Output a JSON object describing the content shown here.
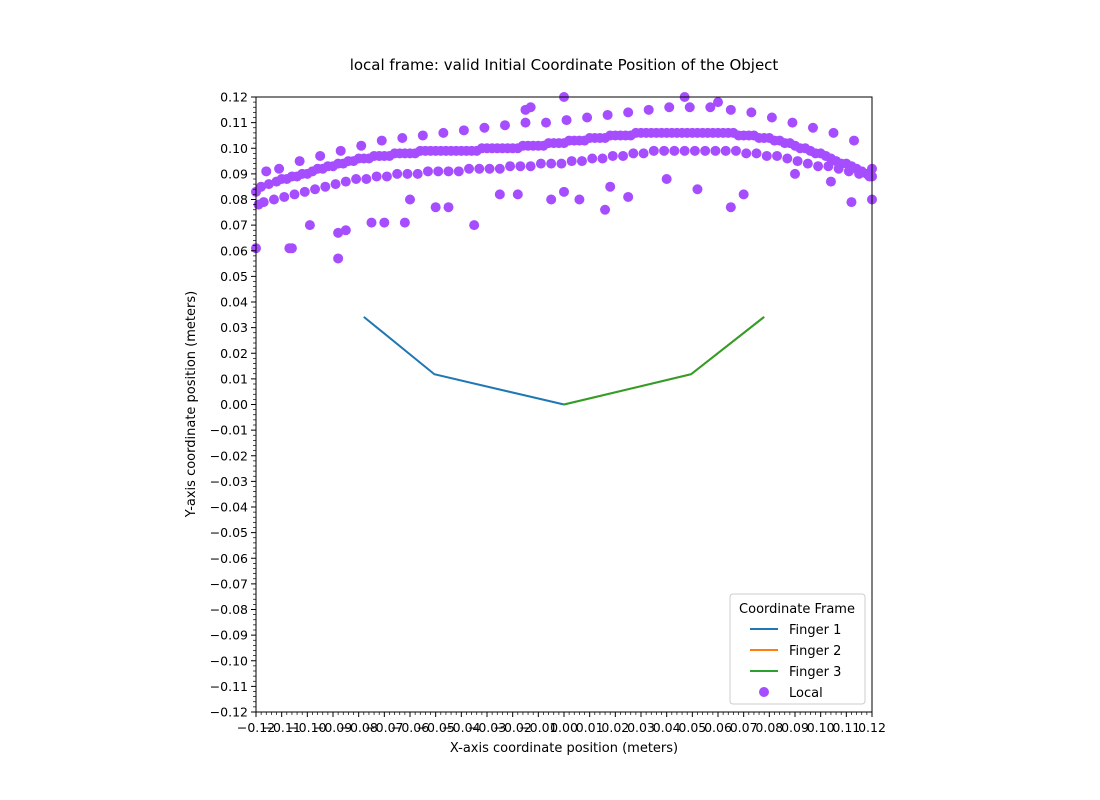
{
  "chart_data": {
    "type": "scatter",
    "title": "local frame: valid Initial Coordinate Position of the Object",
    "xlabel": "X-axis coordinate position (meters)",
    "ylabel": "Y-axis coordinate position (meters)",
    "xlim": [
      -0.12,
      0.12
    ],
    "ylim": [
      -0.12,
      0.12
    ],
    "xticks": [
      "−0.12",
      "−0.11",
      "−0.10",
      "−0.09",
      "−0.08",
      "−0.07",
      "−0.06",
      "−0.05",
      "−0.04",
      "−0.03",
      "−0.02",
      "−0.01",
      "0.00",
      "0.01",
      "0.02",
      "0.03",
      "0.04",
      "0.05",
      "0.06",
      "0.07",
      "0.08",
      "0.09",
      "0.10",
      "0.11",
      "0.12"
    ],
    "yticks": [
      "−0.12",
      "−0.11",
      "−0.10",
      "−0.09",
      "−0.08",
      "−0.07",
      "−0.06",
      "−0.05",
      "−0.04",
      "−0.03",
      "−0.02",
      "−0.01",
      "0.00",
      "0.01",
      "0.02",
      "0.03",
      "0.04",
      "0.05",
      "0.06",
      "0.07",
      "0.08",
      "0.09",
      "0.10",
      "0.11",
      "0.12"
    ],
    "grid": false,
    "legend": {
      "title": "Coordinate Frame",
      "placement": "bottom-right",
      "entries": [
        "Finger 1",
        "Finger 2",
        "Finger 3",
        "Local"
      ]
    },
    "series": [
      {
        "name": "Finger 1",
        "kind": "line",
        "color": "#1f77b4",
        "x": [
          0.0,
          -0.0505,
          -0.078
        ],
        "y": [
          0.0,
          0.0118,
          0.0342
        ]
      },
      {
        "name": "Finger 2",
        "kind": "line",
        "color": "#ff7f0e",
        "x": [
          0.0,
          0.0495,
          0.078
        ],
        "y": [
          0.0,
          0.0118,
          0.0342
        ]
      },
      {
        "name": "Finger 3",
        "kind": "line",
        "color": "#2ca02c",
        "x": [
          0.0,
          0.0495,
          0.078
        ],
        "y": [
          0.0,
          0.0118,
          0.0342
        ]
      },
      {
        "name": "Local",
        "kind": "scatter",
        "color": "#a64dff",
        "x": [
          -0.12,
          -0.118,
          -0.115,
          -0.112,
          -0.11,
          -0.108,
          -0.106,
          -0.104,
          -0.102,
          -0.1,
          -0.098,
          -0.096,
          -0.094,
          -0.092,
          -0.09,
          -0.088,
          -0.086,
          -0.084,
          -0.082,
          -0.08,
          -0.078,
          -0.076,
          -0.074,
          -0.072,
          -0.07,
          -0.068,
          -0.066,
          -0.064,
          -0.062,
          -0.06,
          -0.058,
          -0.056,
          -0.054,
          -0.052,
          -0.05,
          -0.048,
          -0.046,
          -0.044,
          -0.042,
          -0.04,
          -0.038,
          -0.036,
          -0.034,
          -0.032,
          -0.03,
          -0.028,
          -0.026,
          -0.024,
          -0.022,
          -0.02,
          -0.018,
          -0.016,
          -0.014,
          -0.012,
          -0.01,
          -0.008,
          -0.006,
          -0.004,
          -0.002,
          0.0,
          0.002,
          0.004,
          0.006,
          0.008,
          0.01,
          0.012,
          0.014,
          0.016,
          0.018,
          0.02,
          0.022,
          0.024,
          0.026,
          0.028,
          0.03,
          0.032,
          0.034,
          0.036,
          0.038,
          0.04,
          0.042,
          0.044,
          0.046,
          0.048,
          0.05,
          0.052,
          0.054,
          0.056,
          0.058,
          0.06,
          0.062,
          0.064,
          0.066,
          0.068,
          0.07,
          0.072,
          0.074,
          0.076,
          0.078,
          0.08,
          0.082,
          0.084,
          0.086,
          0.088,
          0.09,
          0.092,
          0.094,
          0.096,
          0.098,
          0.1,
          0.102,
          0.104,
          0.106,
          0.108,
          0.11,
          0.112,
          0.114,
          0.116,
          0.118,
          0.12,
          -0.119,
          -0.117,
          -0.113,
          -0.109,
          -0.105,
          -0.101,
          -0.097,
          -0.093,
          -0.089,
          -0.085,
          -0.081,
          -0.077,
          -0.073,
          -0.069,
          -0.065,
          -0.061,
          -0.057,
          -0.053,
          -0.049,
          -0.045,
          -0.041,
          -0.037,
          -0.033,
          -0.029,
          -0.025,
          -0.021,
          -0.017,
          -0.013,
          -0.009,
          -0.005,
          -0.001,
          0.003,
          0.007,
          0.011,
          0.015,
          0.019,
          0.023,
          0.027,
          0.031,
          0.035,
          0.039,
          0.043,
          0.047,
          0.051,
          0.055,
          0.059,
          0.063,
          0.067,
          0.071,
          0.075,
          0.079,
          0.083,
          0.087,
          0.091,
          0.095,
          0.099,
          0.103,
          0.107,
          0.111,
          0.115,
          0.119,
          -0.116,
          -0.111,
          -0.103,
          -0.095,
          -0.087,
          -0.079,
          -0.071,
          -0.063,
          -0.055,
          -0.047,
          -0.039,
          -0.031,
          -0.023,
          -0.015,
          -0.007,
          0.001,
          0.009,
          0.017,
          0.025,
          0.033,
          0.041,
          0.049,
          0.057,
          0.065,
          0.073,
          0.081,
          0.089,
          0.097,
          0.105,
          0.113,
          -0.12,
          -0.107,
          -0.106,
          -0.099,
          -0.088,
          -0.088,
          -0.085,
          -0.075,
          -0.07,
          -0.062,
          -0.06,
          -0.05,
          -0.045,
          -0.035,
          -0.025,
          -0.018,
          -0.015,
          -0.005,
          0.0,
          0.006,
          0.016,
          0.018,
          0.025,
          0.04,
          0.052,
          0.065,
          0.07,
          0.09,
          0.104,
          0.112,
          0.12,
          0.12,
          0.047,
          0.06,
          0.0,
          -0.013
        ],
        "y": [
          0.083,
          0.085,
          0.086,
          0.087,
          0.088,
          0.088,
          0.089,
          0.089,
          0.09,
          0.09,
          0.091,
          0.092,
          0.092,
          0.093,
          0.093,
          0.094,
          0.094,
          0.095,
          0.095,
          0.096,
          0.096,
          0.096,
          0.097,
          0.097,
          0.097,
          0.097,
          0.098,
          0.098,
          0.098,
          0.098,
          0.098,
          0.099,
          0.099,
          0.099,
          0.099,
          0.099,
          0.099,
          0.099,
          0.099,
          0.099,
          0.099,
          0.099,
          0.099,
          0.1,
          0.1,
          0.1,
          0.1,
          0.1,
          0.1,
          0.1,
          0.1,
          0.101,
          0.101,
          0.101,
          0.101,
          0.101,
          0.102,
          0.102,
          0.102,
          0.102,
          0.103,
          0.103,
          0.103,
          0.103,
          0.104,
          0.104,
          0.104,
          0.104,
          0.105,
          0.105,
          0.105,
          0.105,
          0.105,
          0.106,
          0.106,
          0.106,
          0.106,
          0.106,
          0.106,
          0.106,
          0.106,
          0.106,
          0.106,
          0.106,
          0.106,
          0.106,
          0.106,
          0.106,
          0.106,
          0.106,
          0.106,
          0.106,
          0.106,
          0.105,
          0.105,
          0.105,
          0.105,
          0.104,
          0.104,
          0.104,
          0.103,
          0.103,
          0.102,
          0.102,
          0.101,
          0.1,
          0.1,
          0.099,
          0.098,
          0.098,
          0.097,
          0.096,
          0.095,
          0.094,
          0.094,
          0.093,
          0.092,
          0.091,
          0.09,
          0.089,
          0.078,
          0.079,
          0.08,
          0.081,
          0.082,
          0.083,
          0.084,
          0.085,
          0.086,
          0.087,
          0.088,
          0.088,
          0.089,
          0.089,
          0.09,
          0.09,
          0.09,
          0.091,
          0.091,
          0.091,
          0.091,
          0.092,
          0.092,
          0.092,
          0.092,
          0.093,
          0.093,
          0.093,
          0.094,
          0.094,
          0.094,
          0.095,
          0.095,
          0.096,
          0.096,
          0.097,
          0.097,
          0.098,
          0.098,
          0.099,
          0.099,
          0.099,
          0.099,
          0.099,
          0.099,
          0.099,
          0.099,
          0.099,
          0.098,
          0.098,
          0.097,
          0.097,
          0.096,
          0.095,
          0.094,
          0.093,
          0.093,
          0.092,
          0.091,
          0.09,
          0.089,
          0.091,
          0.092,
          0.095,
          0.097,
          0.099,
          0.101,
          0.103,
          0.104,
          0.105,
          0.106,
          0.107,
          0.108,
          0.109,
          0.11,
          0.11,
          0.111,
          0.112,
          0.113,
          0.114,
          0.115,
          0.116,
          0.116,
          0.116,
          0.115,
          0.114,
          0.112,
          0.11,
          0.108,
          0.106,
          0.103,
          0.061,
          0.061,
          0.061,
          0.07,
          0.057,
          0.067,
          0.068,
          0.071,
          0.071,
          0.071,
          0.08,
          0.077,
          0.077,
          0.07,
          0.082,
          0.082,
          0.115,
          0.08,
          0.083,
          0.08,
          0.076,
          0.085,
          0.081,
          0.088,
          0.084,
          0.077,
          0.082,
          0.09,
          0.087,
          0.079,
          0.08,
          0.092,
          0.12,
          0.118,
          0.12,
          0.116
        ]
      }
    ]
  }
}
